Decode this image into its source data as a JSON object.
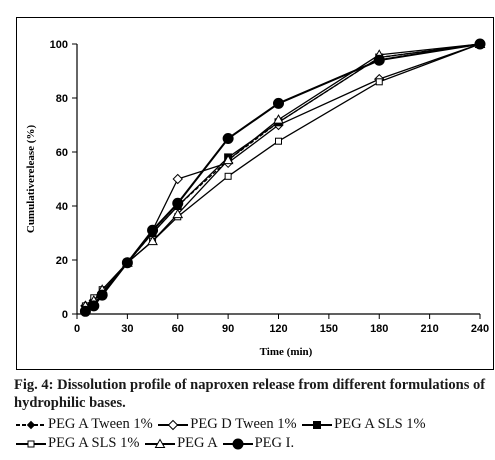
{
  "caption": {
    "figure_label": "Fig. 4:",
    "text": "Dissolution profile of naproxen release from different formulations of hydrophilic bases."
  },
  "chart_data": {
    "type": "line",
    "title": "",
    "xlabel": "Time (min)",
    "ylabel": "Cumulativerelease (%)",
    "xlim": [
      0,
      240
    ],
    "ylim": [
      0,
      100
    ],
    "xticks": [
      0,
      30,
      60,
      90,
      120,
      150,
      180,
      210,
      240
    ],
    "yticks": [
      0,
      20,
      40,
      60,
      80,
      100
    ],
    "grid": false,
    "legend_position": "below",
    "series": [
      {
        "name": "PEG A Tween 1%",
        "marker": "diamond-small",
        "line_style": "dashed",
        "x": [
          5,
          10,
          15,
          30,
          45,
          60,
          90,
          120,
          180,
          240
        ],
        "y": [
          2,
          5,
          8,
          19,
          30,
          40,
          57,
          71,
          95,
          100
        ]
      },
      {
        "name": "PEG D Tween 1%",
        "marker": "diamond-open",
        "line_style": "solid",
        "x": [
          5,
          10,
          15,
          30,
          45,
          60,
          90,
          120,
          180,
          240
        ],
        "y": [
          3,
          5,
          8,
          19,
          31,
          50,
          56,
          70,
          87,
          100
        ]
      },
      {
        "name": "PEG A SLS 1%",
        "marker": "square-filled",
        "line_style": "solid",
        "x": [
          5,
          10,
          15,
          30,
          45,
          60,
          90,
          120,
          180,
          240
        ],
        "y": [
          2,
          4,
          7,
          19,
          30,
          40,
          58,
          71,
          95,
          100
        ]
      },
      {
        "name": "PEG A SLS 1%",
        "marker": "square-open",
        "line_style": "solid",
        "x": [
          5,
          10,
          15,
          30,
          45,
          60,
          90,
          120,
          180,
          240
        ],
        "y": [
          3,
          6,
          9,
          19,
          27,
          36,
          51,
          64,
          86,
          100
        ]
      },
      {
        "name": "PEG A",
        "marker": "triangle",
        "line_style": "solid",
        "x": [
          5,
          10,
          15,
          30,
          45,
          60,
          90,
          120,
          180,
          240
        ],
        "y": [
          3,
          5,
          9,
          19,
          27,
          37,
          57,
          72,
          96,
          100
        ]
      },
      {
        "name": "PEG I.",
        "marker": "circle-filled",
        "line_style": "solid",
        "x": [
          5,
          10,
          15,
          30,
          45,
          60,
          90,
          120,
          180,
          240
        ],
        "y": [
          1,
          3,
          7,
          19,
          31,
          41,
          65,
          78,
          94,
          100
        ]
      }
    ]
  }
}
